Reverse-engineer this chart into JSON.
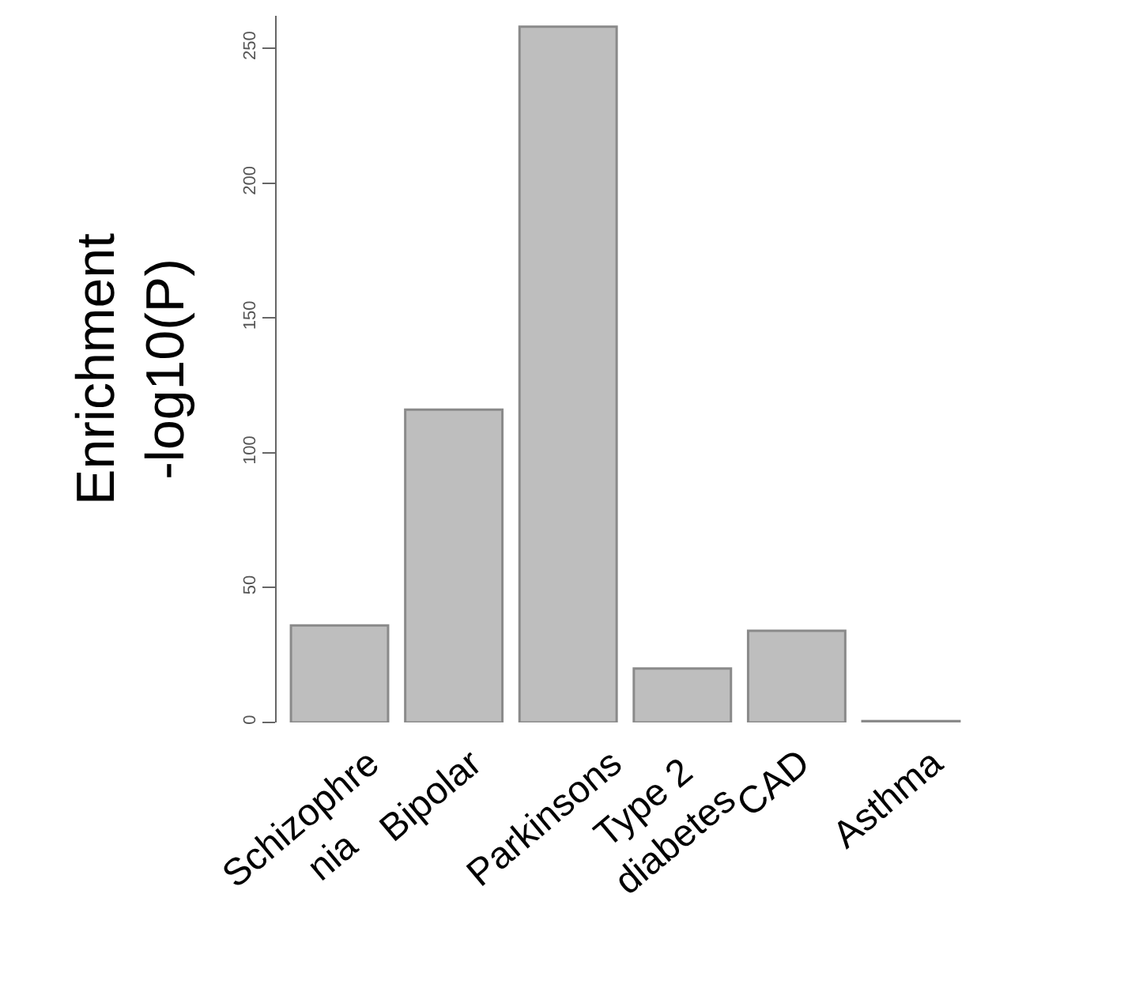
{
  "chart_data": {
    "type": "bar",
    "ylabel": "Enrichment\n-log10(P)",
    "categories": [
      "Schizophre\nnia",
      "Bipolar",
      "Parkinsons",
      "Type 2\ndiabetes",
      "CAD",
      "Asthma"
    ],
    "values": [
      36,
      116,
      258,
      20,
      34,
      0.5
    ],
    "color": "#bebebe",
    "ylim": [
      0,
      262
    ],
    "yticks": [
      0,
      50,
      100,
      150,
      200,
      250
    ]
  }
}
